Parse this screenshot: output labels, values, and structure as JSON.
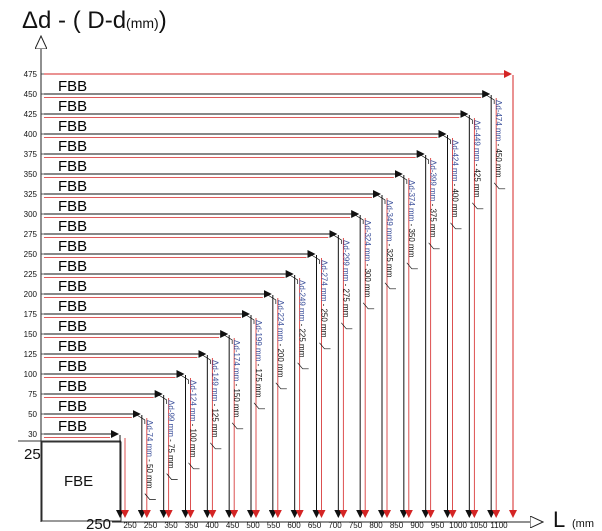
{
  "title": {
    "main": "Δd - ( D-d",
    "unit": "(mm)",
    "close": ")"
  },
  "x_axis": {
    "label": "L",
    "unit_fragment": "(mm",
    "ticks": [
      "250",
      "250",
      "350",
      "350",
      "400",
      "450",
      "500",
      "550",
      "600",
      "650",
      "700",
      "750",
      "800",
      "850",
      "900",
      "950",
      "1000",
      "1050",
      "1100"
    ],
    "highlight_color": "#cc2222",
    "highlighted_tick": "1100"
  },
  "y_axis": {
    "ticks": [
      "475",
      "450",
      "425",
      "400",
      "375",
      "350",
      "325",
      "300",
      "275",
      "250",
      "225",
      "200",
      "175",
      "150",
      "125",
      "100",
      "75",
      "50",
      "30"
    ]
  },
  "labels": {
    "fbb": "FBB",
    "fbe": "FBE",
    "corner_top": "25",
    "corner_bottom": "250"
  },
  "colors": {
    "red": "#d42525",
    "black": "#111111",
    "label_blue": "#3b4f9a"
  },
  "chart_data": {
    "type": "diagram",
    "rows": [
      {
        "y": 475,
        "L": 1100,
        "color": "red"
      },
      {
        "y": 450,
        "L": 1050,
        "color": "black",
        "dd": "Δd-474 mm",
        "dim": "450 mm"
      },
      {
        "y": 425,
        "L": 1000,
        "color": "black",
        "dd": "Δd-449 mm",
        "dim": "425 mm"
      },
      {
        "y": 400,
        "L": 950,
        "color": "black",
        "dd": "Δd-424 mm",
        "dim": "400 mm"
      },
      {
        "y": 375,
        "L": 900,
        "color": "black",
        "dd": "Δd-399 mm",
        "dim": "375 mm"
      },
      {
        "y": 350,
        "L": 850,
        "color": "black",
        "dd": "Δd-374 mm",
        "dim": "350 mm"
      },
      {
        "y": 325,
        "L": 800,
        "color": "black",
        "dd": "Δd-349 mm",
        "dim": "325 mm"
      },
      {
        "y": 300,
        "L": 750,
        "color": "black",
        "dd": "Δd-324 mm",
        "dim": "300 mm"
      },
      {
        "y": 275,
        "L": 700,
        "color": "black",
        "dd": "Δd-299 mm",
        "dim": "275 mm"
      },
      {
        "y": 250,
        "L": 650,
        "color": "black",
        "dd": "Δd-274 mm",
        "dim": "250 mm"
      },
      {
        "y": 225,
        "L": 600,
        "color": "black",
        "dd": "Δd-249 mm",
        "dim": "225 mm"
      },
      {
        "y": 200,
        "L": 550,
        "color": "black",
        "dd": "Δd-224 mm",
        "dim": "200 mm"
      },
      {
        "y": 175,
        "L": 500,
        "color": "black",
        "dd": "Δd-199 mm",
        "dim": "175 mm"
      },
      {
        "y": 150,
        "L": 450,
        "color": "black",
        "dd": "Δd-174 mm",
        "dim": "150 mm"
      },
      {
        "y": 125,
        "L": 400,
        "color": "black",
        "dd": "Δd-149 mm",
        "dim": "125 mm"
      },
      {
        "y": 100,
        "L": 350,
        "color": "black",
        "dd": "Δd-124 mm",
        "dim": "100 mm"
      },
      {
        "y": 75,
        "L": 300,
        "color": "black",
        "dd": "Δd-99 mm",
        "dim": "75 mm"
      },
      {
        "y": 50,
        "L": 250,
        "color": "black",
        "dd": "Δd-74 mm",
        "dim": "50 mm"
      },
      {
        "y": 30,
        "L": 200,
        "color": "black"
      }
    ]
  }
}
